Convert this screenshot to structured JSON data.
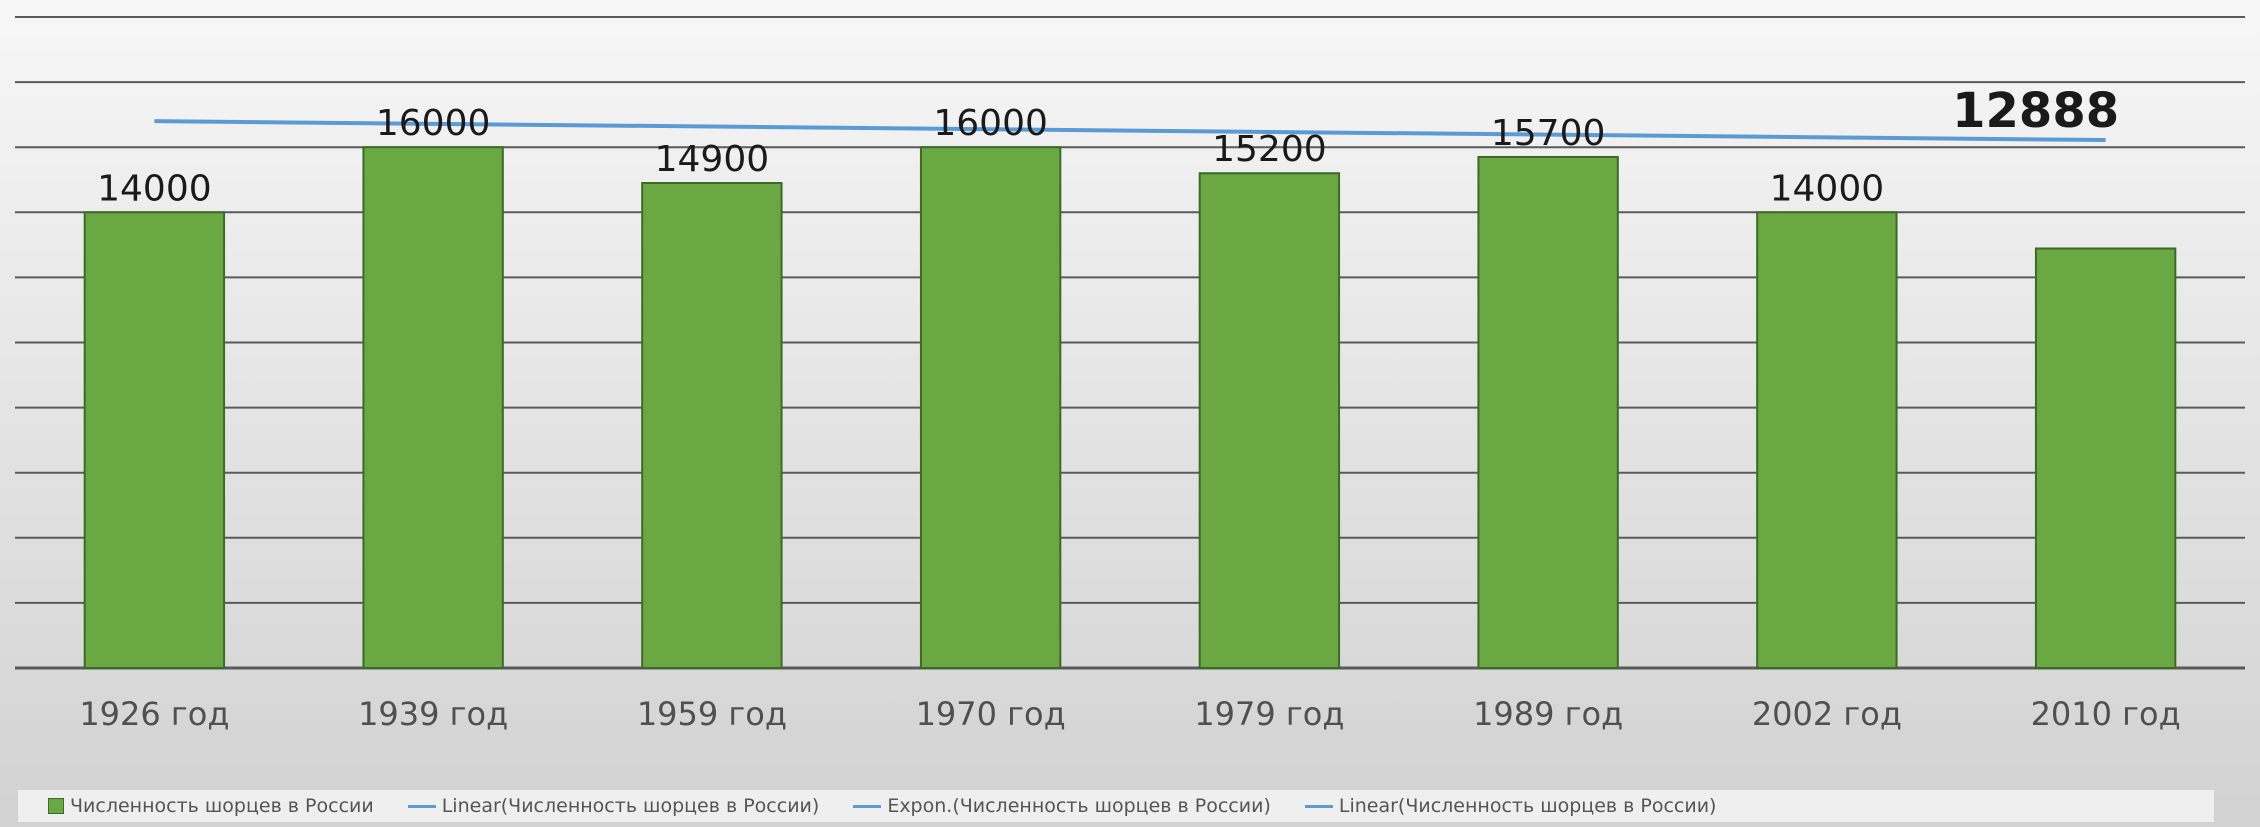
{
  "colors": {
    "bar": "#6aa844",
    "bar_stroke": "#3d6a26",
    "trend": "#5b9bd5",
    "grid": "#5a5a5a",
    "label": "#1a1a1a",
    "tick": "#505050"
  },
  "chart_data": {
    "type": "bar",
    "categories": [
      "1926 год",
      "1939 год",
      "1959 год",
      "1970 год",
      "1979 год",
      "1989 год",
      "2002 год",
      "2010 год"
    ],
    "values": [
      14000,
      16000,
      14900,
      16000,
      15200,
      15700,
      14000,
      12888
    ],
    "data_labels": [
      "14000",
      "16000",
      "14900",
      "16000",
      "15200",
      "15700",
      "14000",
      "12888"
    ],
    "ylim": [
      0,
      20000
    ],
    "grid": true,
    "trendline": {
      "type": "linear",
      "start": 16800,
      "end": 16220
    },
    "legend": {
      "position": "bottom",
      "entries": [
        {
          "label": "Численность шорцев в России",
          "kind": "bar"
        },
        {
          "label": "Linear(Численность шорцев в России)",
          "kind": "line"
        },
        {
          "label": "Expon.(Численность шорцев в России)",
          "kind": "line"
        },
        {
          "label": "Linear(Численность шорцев в России)",
          "kind": "line"
        }
      ]
    }
  }
}
